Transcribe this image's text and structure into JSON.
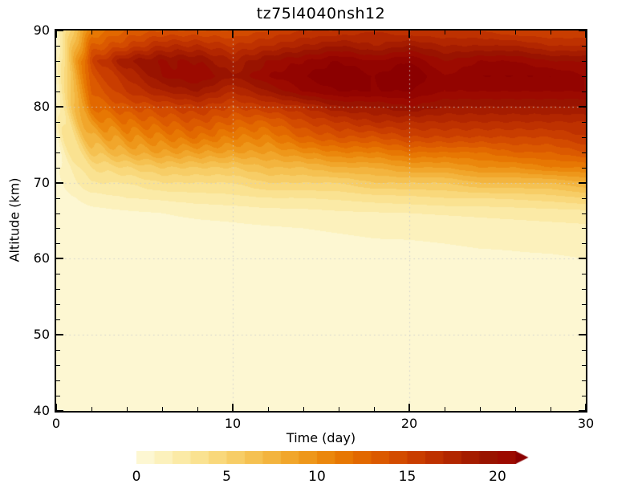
{
  "chart_data": {
    "type": "heatmap",
    "title": "tz75l4040nsh12",
    "xlabel": "Time (day)",
    "ylabel": "Altitude (km)",
    "x_range": [
      0,
      30
    ],
    "y_range": [
      40,
      90
    ],
    "x_ticks": [
      0,
      10,
      20,
      30
    ],
    "x_minor_step": 2,
    "y_ticks": [
      40,
      50,
      60,
      70,
      80,
      90
    ],
    "y_minor_step": 2,
    "grid_x": [
      10,
      20
    ],
    "grid_y": [
      50,
      60,
      70,
      80
    ],
    "legend_position": "bottom",
    "grid": true,
    "times": [
      0,
      2,
      4,
      6,
      8,
      10,
      12,
      14,
      16,
      18,
      20,
      22,
      24,
      26,
      28,
      30
    ],
    "altitudes": [
      90,
      88,
      86,
      84,
      82,
      80,
      78,
      76,
      74,
      72,
      70,
      68,
      66,
      64,
      62,
      60,
      58,
      55,
      50,
      45,
      40
    ],
    "values": [
      [
        1,
        11,
        13,
        14,
        14,
        14,
        15,
        16,
        16,
        17,
        16,
        16,
        16,
        15,
        15,
        15
      ],
      [
        1,
        13,
        15,
        17,
        17,
        16,
        17,
        18,
        19,
        18,
        19,
        18,
        18,
        18,
        17,
        17
      ],
      [
        1,
        15,
        19,
        20,
        20,
        18,
        20,
        21,
        22,
        21,
        22,
        20,
        21,
        21,
        20,
        20
      ],
      [
        1,
        14,
        17,
        20,
        21,
        19,
        21,
        22,
        23,
        22,
        23,
        21,
        22,
        22,
        22,
        21
      ],
      [
        1,
        13,
        16,
        18,
        19,
        17,
        19,
        21,
        22,
        22,
        22,
        21,
        21,
        21,
        21,
        21
      ],
      [
        1,
        12,
        14,
        15,
        16,
        15,
        16,
        17,
        19,
        19,
        20,
        19,
        19,
        19,
        19,
        19
      ],
      [
        1,
        10,
        12,
        13,
        14,
        13,
        13,
        15,
        16,
        17,
        17,
        17,
        17,
        17,
        17,
        17
      ],
      [
        1,
        8,
        10,
        11,
        12,
        11,
        11,
        13,
        14,
        14,
        15,
        15,
        15,
        15,
        15,
        16
      ],
      [
        0.8,
        6,
        8,
        9,
        9,
        9,
        9,
        10,
        11,
        11,
        12,
        12,
        12,
        13,
        13,
        14
      ],
      [
        0.6,
        4,
        5,
        6,
        6,
        6,
        7,
        7,
        8,
        8,
        9,
        9,
        10,
        10,
        11,
        11
      ],
      [
        0.5,
        3,
        3,
        4,
        4,
        4,
        5,
        5,
        5,
        6,
        6,
        6,
        7,
        7,
        7,
        8
      ],
      [
        0.4,
        1.5,
        2,
        2.2,
        2.5,
        2.7,
        3,
        3,
        3.2,
        3.5,
        3.7,
        4,
        4,
        4.2,
        4.5,
        5
      ],
      [
        0.3,
        0.6,
        0.8,
        1.0,
        1.2,
        1.3,
        1.5,
        1.6,
        1.8,
        1.9,
        2.0,
        2.1,
        2.2,
        2.3,
        2.4,
        2.5
      ],
      [
        0.2,
        0.4,
        0.5,
        0.6,
        0.7,
        0.8,
        0.9,
        1.0,
        1.1,
        1.2,
        1.3,
        1.4,
        1.5,
        1.6,
        1.7,
        1.8
      ],
      [
        0.1,
        0.3,
        0.4,
        0.4,
        0.5,
        0.6,
        0.6,
        0.7,
        0.8,
        0.9,
        0.9,
        1.0,
        1.1,
        1.1,
        1.2,
        1.3
      ],
      [
        0.1,
        0.2,
        0.3,
        0.3,
        0.4,
        0.4,
        0.5,
        0.5,
        0.6,
        0.6,
        0.7,
        0.7,
        0.8,
        0.9,
        0.9,
        1.0
      ],
      [
        0,
        0.1,
        0.2,
        0.2,
        0.3,
        0.3,
        0.3,
        0.4,
        0.4,
        0.4,
        0.5,
        0.5,
        0.5,
        0.6,
        0.6,
        0.7
      ],
      [
        0,
        0.1,
        0.1,
        0.1,
        0.2,
        0.2,
        0.2,
        0.2,
        0.3,
        0.3,
        0.3,
        0.3,
        0.3,
        0.4,
        0.4,
        0.4
      ],
      [
        0,
        0,
        0.1,
        0.1,
        0.1,
        0.1,
        0.1,
        0.1,
        0.1,
        0.2,
        0.2,
        0.2,
        0.2,
        0.2,
        0.2,
        0.2
      ],
      [
        0,
        0,
        0,
        0,
        0,
        0,
        0,
        0,
        0.1,
        0.1,
        0.1,
        0.1,
        0.1,
        0.1,
        0.1,
        0.1
      ],
      [
        0,
        0,
        0,
        0,
        0,
        0,
        0,
        0,
        0,
        0,
        0,
        0,
        0,
        0,
        0,
        0
      ]
    ],
    "colors": [
      "#FDF7D2",
      "#FCF1BC",
      "#FBEAA6",
      "#FAE291",
      "#F9D87B",
      "#F7CD66",
      "#F5C151",
      "#F3B43E",
      "#F1A62B",
      "#EE971A",
      "#EB870C",
      "#E77703",
      "#E26800",
      "#DB5900",
      "#D34B00",
      "#C93D00",
      "#BE3100",
      "#B22600",
      "#A51C00",
      "#991300",
      "#9C0A00",
      "#930400",
      "#8B0000"
    ],
    "colorbar": {
      "ticks": [
        0,
        5,
        10,
        15,
        20
      ],
      "range": [
        0,
        21
      ],
      "arrow": true
    }
  }
}
